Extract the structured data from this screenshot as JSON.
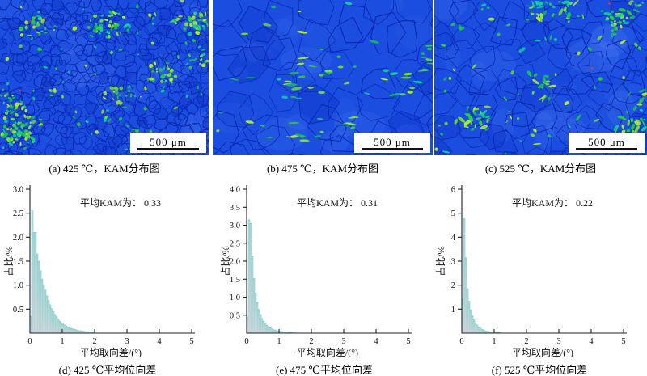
{
  "micrographs": [
    {
      "caption": "(a) 425 ℃，KAM分布图",
      "scale_bar": "500 μm",
      "grain": "fine",
      "seed": 7
    },
    {
      "caption": "(b) 475 ℃，KAM分布图",
      "scale_bar": "500 μm",
      "grain": "coarse",
      "seed": 21
    },
    {
      "caption": "(c) 525 ℃，KAM分布图",
      "scale_bar": "500 μm",
      "grain": "medium",
      "seed": 33
    }
  ],
  "chart_data": [
    {
      "type": "bar",
      "id": "d",
      "caption": "(d) 425 ℃平均位向差",
      "annotation": "平均KAM为： 0.33",
      "xlabel": "平均取向差/(°)",
      "ylabel": "占比/%",
      "xlim": [
        0,
        5
      ],
      "ylim": [
        0,
        3.0
      ],
      "xticks": [
        0,
        1,
        2,
        3,
        4,
        5
      ],
      "yticks": [
        0.5,
        1.0,
        1.5,
        2.0,
        2.5,
        3.0
      ],
      "ytick_labels": [
        "0.5",
        "1.0",
        "1.5",
        "2.0",
        "2.5",
        "3.0"
      ],
      "bin_width": 0.05,
      "values": [
        0.35,
        2.55,
        2.1,
        2.1,
        1.65,
        1.5,
        1.3,
        1.13,
        1.0,
        0.9,
        0.78,
        0.68,
        0.59,
        0.51,
        0.45,
        0.39,
        0.34,
        0.29,
        0.25,
        0.22,
        0.19,
        0.17,
        0.15,
        0.13,
        0.11,
        0.1,
        0.09,
        0.08,
        0.07,
        0.06,
        0.05,
        0.05,
        0.04,
        0.04,
        0.03,
        0.03,
        0.03,
        0.02,
        0.02,
        0.02
      ]
    },
    {
      "type": "bar",
      "id": "e",
      "caption": "(e) 475 ℃平均位向差",
      "annotation": "平均KAM为： 0.31",
      "xlabel": "平均取向差/(°)",
      "ylabel": "占比/%",
      "xlim": [
        0,
        5
      ],
      "ylim": [
        0,
        4.0
      ],
      "xticks": [
        0,
        1,
        2,
        3,
        4,
        5
      ],
      "yticks": [
        0.5,
        1.0,
        1.5,
        2.0,
        2.5,
        3.0,
        3.5,
        4.0
      ],
      "ytick_labels": [
        "0.5",
        "1.0",
        "1.5",
        "2.0",
        "2.5",
        "3.0",
        "3.5",
        "4.0"
      ],
      "bin_width": 0.05,
      "values": [
        0.45,
        3.15,
        3.05,
        2.15,
        1.52,
        1.12,
        0.85,
        0.66,
        0.52,
        0.41,
        0.33,
        0.27,
        0.22,
        0.18,
        0.15,
        0.12,
        0.1,
        0.09,
        0.07,
        0.06,
        0.05,
        0.05,
        0.04,
        0.03,
        0.03,
        0.02,
        0.02,
        0.02,
        0.01,
        0.01
      ]
    },
    {
      "type": "bar",
      "id": "f",
      "caption": "(f) 525 ℃平均位向差",
      "annotation": "平均KAM为： 0.22",
      "xlabel": "平均取向差/(°)",
      "ylabel": "占比/%",
      "xlim": [
        0,
        5
      ],
      "ylim": [
        0,
        6
      ],
      "xticks": [
        0,
        1,
        2,
        3,
        4,
        5
      ],
      "yticks": [
        1,
        2,
        3,
        4,
        5,
        6
      ],
      "ytick_labels": [
        "1",
        "2",
        "3",
        "4",
        "5",
        "6"
      ],
      "bin_width": 0.05,
      "values": [
        1.45,
        4.8,
        3.15,
        1.85,
        1.33,
        0.97,
        0.73,
        0.56,
        0.43,
        0.34,
        0.26,
        0.21,
        0.16,
        0.13,
        0.1,
        0.08,
        0.07,
        0.05,
        0.04,
        0.04,
        0.03,
        0.02,
        0.02,
        0.02
      ]
    }
  ],
  "colors": {
    "micro_base": "#1a4de0",
    "micro_boundary": "#0a28b0",
    "speckle_palette": [
      "#2bd42c",
      "#7ce822",
      "#b7f01d",
      "#15c353",
      "#0fd39b"
    ],
    "red_dot": "#e43a1c",
    "bar_top": "#a9dcda",
    "bar_bottom": "#ecdce6",
    "bar_stroke": "#80c6c4",
    "axis": "#222222"
  }
}
